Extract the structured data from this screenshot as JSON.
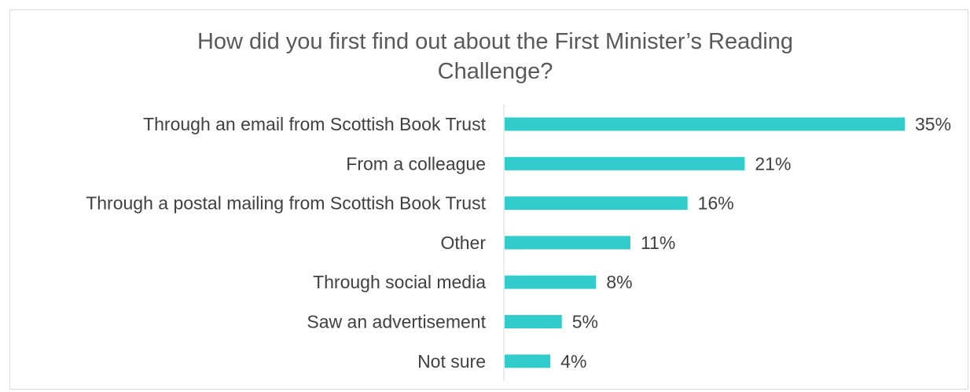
{
  "chart_data": {
    "type": "bar",
    "orientation": "horizontal",
    "title": "How did you first find out about the First Minister’s Reading Challenge?",
    "title_lines": [
      "How did you first find out about the First Minister’s Reading",
      "Challenge?"
    ],
    "categories": [
      "Through an email from Scottish Book Trust",
      "From a colleague",
      "Through a postal mailing from Scottish Book Trust",
      "Other",
      "Through social media",
      "Saw an advertisement",
      "Not sure"
    ],
    "values": [
      35,
      21,
      16,
      11,
      8,
      5,
      4
    ],
    "value_labels": [
      "35%",
      "21%",
      "16%",
      "11%",
      "8%",
      "5%",
      "4%"
    ],
    "unit": "%",
    "xlim": [
      0,
      35
    ],
    "grid": false,
    "legend": "none",
    "bar_color": "#33CCCC"
  }
}
